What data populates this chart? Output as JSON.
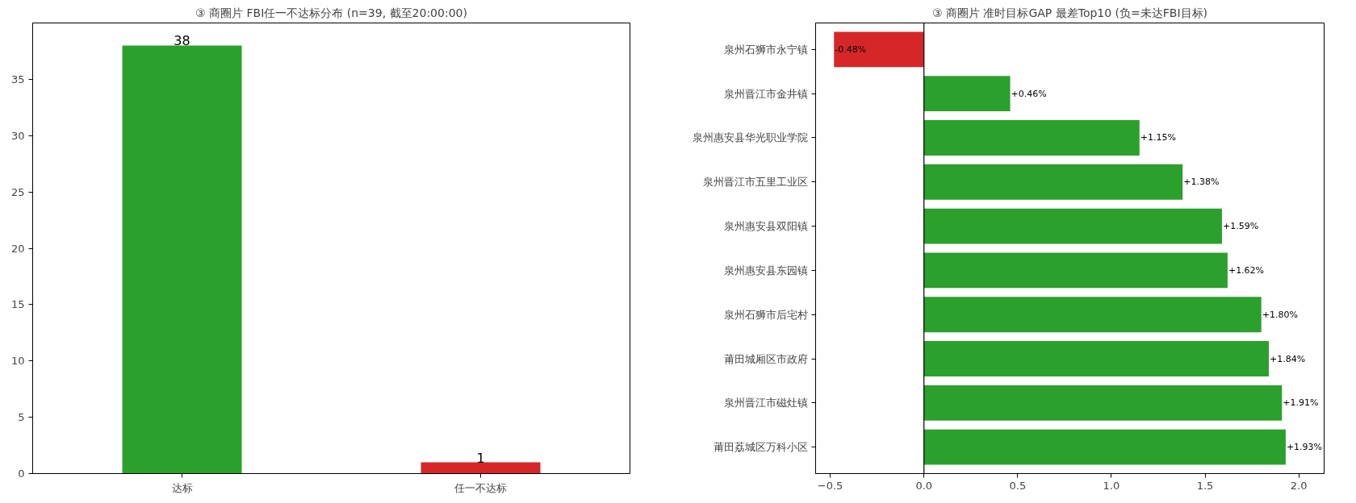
{
  "chart_data": [
    {
      "type": "bar",
      "title": "③ 商圈片 FBI任一不达标分布 (n=39, 截至20:00:00)",
      "categories": [
        "达标",
        "任一不达标"
      ],
      "values": [
        38,
        1
      ],
      "colors": [
        "#2ca02c",
        "#d62728"
      ],
      "data_labels": true,
      "ylim": [
        0,
        40
      ],
      "yticks": [
        0,
        5,
        10,
        15,
        20,
        25,
        30,
        35
      ],
      "grid": false
    },
    {
      "type": "bar",
      "orientation": "horizontal",
      "title": "③ 商圈片 准时目标GAP 最差Top10 (负=未达FBI目标)",
      "categories": [
        "泉州石狮市永宁镇",
        "泉州晋江市金井镇",
        "泉州惠安县华光职业学院",
        "泉州晋江市五里工业区",
        "泉州惠安县双阳镇",
        "泉州惠安县东园镇",
        "泉州石狮市后宅村",
        "莆田城厢区市政府",
        "泉州晋江市磁灶镇",
        "莆田荔城区万科小区"
      ],
      "values": [
        -0.48,
        0.46,
        1.15,
        1.38,
        1.59,
        1.62,
        1.8,
        1.84,
        1.91,
        1.93
      ],
      "colors": [
        "#d62728",
        "#2ca02c",
        "#2ca02c",
        "#2ca02c",
        "#2ca02c",
        "#2ca02c",
        "#2ca02c",
        "#2ca02c",
        "#2ca02c",
        "#2ca02c"
      ],
      "value_labels": [
        "-0.48%",
        "+0.46%",
        "+1.15%",
        "+1.38%",
        "+1.59%",
        "+1.62%",
        "+1.80%",
        "+1.84%",
        "+1.91%",
        "+1.93%"
      ],
      "xlim": [
        -0.578,
        2.135
      ],
      "xticks": [
        -0.5,
        {
          "value": 0,
          "label": "0.0"
        },
        0.5,
        {
          "value": 1,
          "label": "1.0"
        },
        1.5,
        {
          "value": 2,
          "label": "2.0"
        }
      ],
      "ref_lines": [
        {
          "axis": "x",
          "value": 0,
          "color": "#000000"
        }
      ],
      "grid": false
    }
  ]
}
